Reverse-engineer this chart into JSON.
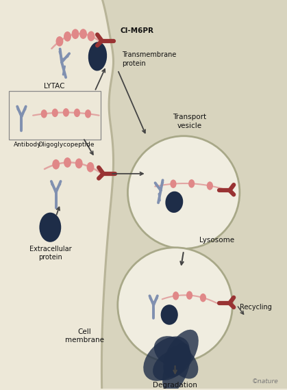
{
  "bg_color": "#ede8d8",
  "cell_color": "#d8d4be",
  "cell_border_color": "#b8b498",
  "vesicle_fill": "#f0ede0",
  "vesicle_border": "#a8a888",
  "antibody_color": "#8090b0",
  "receptor_color": "#993333",
  "oligo_color": "#e08888",
  "oligo_line": "#e09898",
  "protein_dark": "#1e2d48",
  "arrow_color": "#444444",
  "text_color": "#111111",
  "labels": {
    "CI_M6PR": "CI-M6PR",
    "transmembrane": "Transmembrane\nprotein",
    "transport": "Transport\nvesicle",
    "lysosome": "Lysosome",
    "cell_membrane": "Cell\nmembrane",
    "degradation": "Degradation",
    "recycling": "Recycling",
    "lytac": "LYTAC",
    "oligoglycopeptide": "Oligoglycopeptide",
    "antibody": "Antibody",
    "extracellular": "Extracellular\nprotein",
    "nature": "©nature"
  },
  "bg_circles": [
    [
      0.78,
      0.93,
      0.04,
      0.35
    ],
    [
      0.91,
      0.83,
      0.028,
      0.3
    ],
    [
      0.72,
      0.76,
      0.018,
      0.28
    ],
    [
      0.96,
      0.7,
      0.032,
      0.3
    ],
    [
      0.83,
      0.58,
      0.014,
      0.25
    ],
    [
      0.94,
      0.5,
      0.022,
      0.28
    ],
    [
      0.75,
      0.44,
      0.01,
      0.22
    ],
    [
      0.87,
      0.35,
      0.018,
      0.25
    ],
    [
      0.94,
      0.26,
      0.026,
      0.28
    ],
    [
      0.78,
      0.22,
      0.015,
      0.22
    ],
    [
      0.72,
      0.12,
      0.013,
      0.2
    ],
    [
      0.99,
      0.14,
      0.018,
      0.22
    ]
  ]
}
